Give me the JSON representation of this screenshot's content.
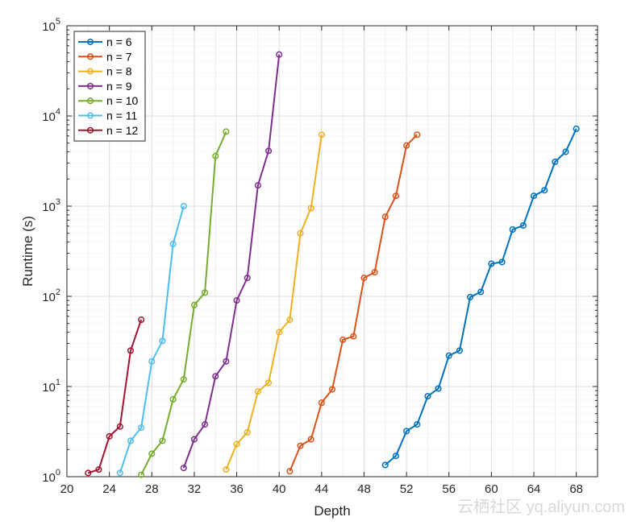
{
  "chart_data": {
    "type": "line",
    "title": "",
    "xlabel": "Depth",
    "ylabel": "Runtime (s)",
    "xlim": [
      20,
      70
    ],
    "ylim": [
      1,
      100000
    ],
    "yscale": "log",
    "grid": true,
    "legend_position": "top-left",
    "xticks": [
      20,
      24,
      28,
      32,
      36,
      40,
      44,
      48,
      52,
      56,
      60,
      64,
      68
    ],
    "yticks": [
      {
        "base": "10",
        "exp": "0"
      },
      {
        "base": "10",
        "exp": "1"
      },
      {
        "base": "10",
        "exp": "2"
      },
      {
        "base": "10",
        "exp": "3"
      },
      {
        "base": "10",
        "exp": "4"
      },
      {
        "base": "10",
        "exp": "5"
      }
    ],
    "series": [
      {
        "name": "n = 6",
        "color": "#0072BD",
        "x": [
          50,
          51,
          52,
          53,
          54,
          55,
          56,
          57,
          58,
          59,
          60,
          61,
          62,
          63,
          64,
          65,
          66,
          67,
          68
        ],
        "y": [
          1.35,
          1.7,
          3.2,
          3.8,
          7.8,
          9.5,
          22,
          25,
          98,
          112,
          230,
          240,
          550,
          610,
          1300,
          1500,
          3100,
          4000,
          7200
        ]
      },
      {
        "name": "n = 7",
        "color": "#D95319",
        "x": [
          41,
          42,
          43,
          44,
          45,
          46,
          47,
          48,
          49,
          50,
          51,
          52,
          53
        ],
        "y": [
          1.15,
          2.2,
          2.6,
          6.6,
          9.3,
          33,
          36,
          160,
          185,
          760,
          1300,
          4700,
          6200
        ]
      },
      {
        "name": "n = 8",
        "color": "#EDB120",
        "x": [
          35,
          36,
          37,
          38,
          39,
          40,
          41,
          42,
          43,
          44
        ],
        "y": [
          1.2,
          2.3,
          3.1,
          8.8,
          11,
          40,
          55,
          500,
          950,
          6200
        ]
      },
      {
        "name": "n = 9",
        "color": "#7E2F8E",
        "x": [
          31,
          32,
          33,
          34,
          35,
          36,
          37,
          38,
          39,
          40
        ],
        "y": [
          1.25,
          2.6,
          3.8,
          13,
          19,
          90,
          160,
          1700,
          4100,
          48000
        ]
      },
      {
        "name": "n = 10",
        "color": "#77AC30",
        "x": [
          27,
          28,
          29,
          30,
          31,
          32,
          33,
          34,
          35
        ],
        "y": [
          1.05,
          1.8,
          2.5,
          7.2,
          12,
          80,
          110,
          3600,
          6700
        ]
      },
      {
        "name": "n = 11",
        "color": "#4DBEEE",
        "x": [
          25,
          26,
          27,
          28,
          29,
          30,
          31
        ],
        "y": [
          1.1,
          2.5,
          3.5,
          19,
          32,
          380,
          1000
        ]
      },
      {
        "name": "n = 12",
        "color": "#A2142F",
        "x": [
          22,
          23,
          24,
          25,
          26,
          27
        ],
        "y": [
          1.1,
          1.2,
          2.8,
          3.6,
          25,
          55
        ]
      }
    ]
  },
  "watermark": "云栖社区 yq.aliyun.com"
}
